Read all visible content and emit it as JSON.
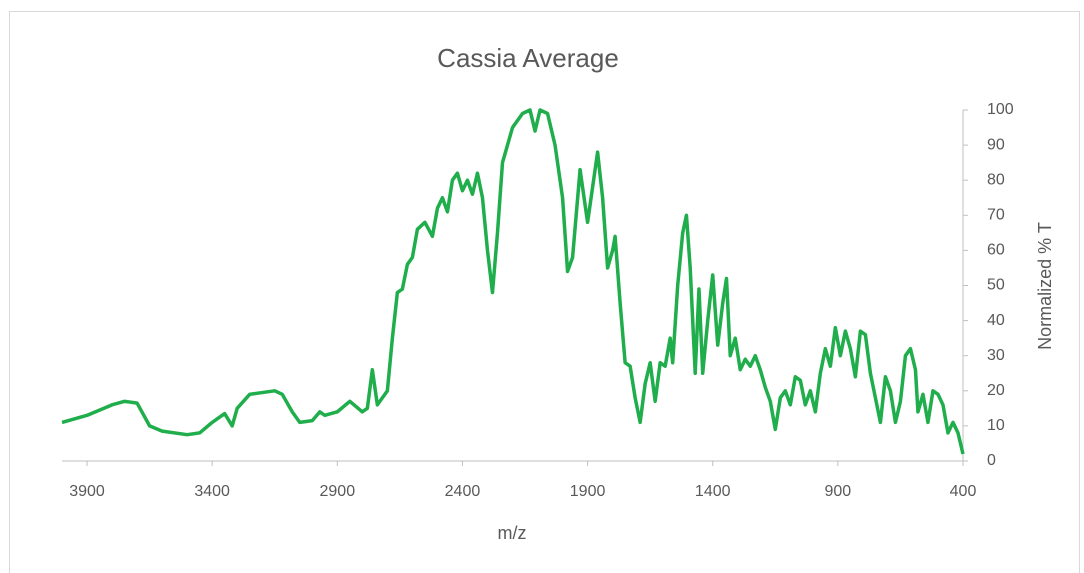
{
  "chart_data": {
    "type": "line",
    "title": "Cassia Average",
    "x_label": "m/z",
    "y_label": "Normalized % T",
    "xlim": [
      4000,
      400
    ],
    "xticks": [
      3900,
      3400,
      2900,
      2400,
      1900,
      1400,
      900,
      400
    ],
    "ylim": [
      0,
      100
    ],
    "yticks": [
      0,
      10,
      20,
      30,
      40,
      50,
      60,
      70,
      80,
      90,
      100
    ],
    "series": [
      {
        "name": "Cassia Average",
        "color": "#1fae4b",
        "x": [
          4000,
          3900,
          3800,
          3750,
          3700,
          3650,
          3600,
          3500,
          3450,
          3400,
          3350,
          3320,
          3300,
          3250,
          3200,
          3150,
          3120,
          3080,
          3050,
          3000,
          2970,
          2950,
          2900,
          2850,
          2800,
          2780,
          2760,
          2740,
          2700,
          2680,
          2660,
          2640,
          2620,
          2600,
          2580,
          2550,
          2520,
          2500,
          2480,
          2460,
          2440,
          2420,
          2400,
          2380,
          2360,
          2340,
          2320,
          2300,
          2280,
          2260,
          2240,
          2200,
          2160,
          2130,
          2110,
          2090,
          2060,
          2030,
          2000,
          1980,
          1960,
          1930,
          1900,
          1880,
          1860,
          1840,
          1820,
          1800,
          1790,
          1770,
          1750,
          1730,
          1710,
          1690,
          1670,
          1650,
          1630,
          1610,
          1590,
          1570,
          1560,
          1540,
          1520,
          1505,
          1490,
          1470,
          1455,
          1440,
          1420,
          1400,
          1380,
          1360,
          1345,
          1330,
          1310,
          1290,
          1270,
          1250,
          1230,
          1210,
          1190,
          1170,
          1150,
          1130,
          1110,
          1090,
          1070,
          1050,
          1030,
          1010,
          990,
          970,
          950,
          930,
          910,
          890,
          870,
          850,
          830,
          810,
          790,
          770,
          750,
          730,
          710,
          690,
          670,
          650,
          630,
          610,
          590,
          580,
          560,
          540,
          520,
          500,
          480,
          460,
          440,
          420,
          400
        ],
        "values": [
          11,
          13,
          16,
          17,
          16.5,
          10,
          8.5,
          7.5,
          8,
          11,
          13.5,
          10,
          15,
          19,
          19.5,
          20,
          19,
          14,
          11,
          11.5,
          14,
          13,
          14,
          17,
          14,
          15,
          26,
          16,
          20,
          35,
          48,
          49,
          56,
          58,
          66,
          68,
          64,
          72,
          75,
          71,
          80,
          82,
          77,
          80,
          76,
          82,
          75,
          60,
          48,
          65,
          85,
          95,
          99,
          100,
          94,
          100,
          99,
          90,
          75,
          54,
          58,
          83,
          68,
          78,
          88,
          75,
          55,
          60,
          64,
          45,
          28,
          27,
          18,
          11,
          22,
          28,
          17,
          28,
          27,
          35,
          28,
          50,
          65,
          70,
          55,
          25,
          49,
          25,
          40,
          53,
          33,
          45,
          52,
          30,
          35,
          26,
          29,
          27,
          30,
          26,
          21,
          17,
          9,
          18,
          20,
          16,
          24,
          23,
          16,
          20,
          14,
          25,
          32,
          27,
          38,
          30,
          37,
          32,
          24,
          37,
          36,
          25,
          18,
          11,
          24,
          20,
          11,
          17,
          30,
          32,
          26,
          14,
          19,
          11,
          20,
          19,
          16,
          8,
          11,
          8,
          2
        ]
      }
    ]
  }
}
